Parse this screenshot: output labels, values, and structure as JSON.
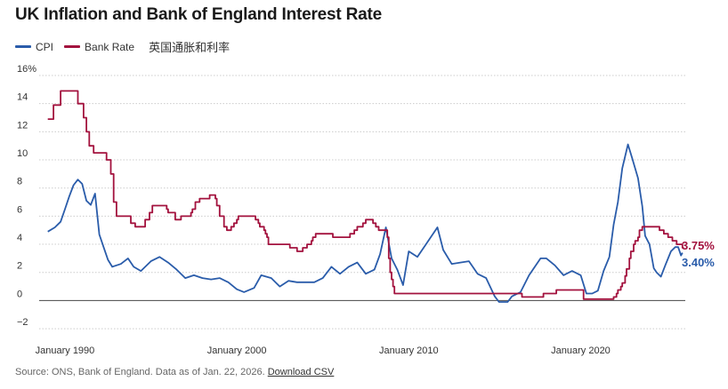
{
  "page": {
    "title": "UK Inflation and Bank of England Interest Rate",
    "legend_note": "英国通胀和利率",
    "source_text": "Source: ONS, Bank of England. Data as of Jan. 22, 2026.",
    "download_label": "Download CSV"
  },
  "colors": {
    "cpi": "#2a5caa",
    "bank_rate": "#a3123e",
    "grid": "#cccccc",
    "zero_line": "#444444"
  },
  "chart_data": {
    "type": "line",
    "title": "UK Inflation and Bank of England Interest Rate",
    "xlabel": "",
    "ylabel": "",
    "ylim": [
      -2.5,
      16
    ],
    "xlim": [
      "1988-07",
      "2026-02"
    ],
    "y_ticks": [
      -2,
      0,
      2,
      4,
      6,
      8,
      10,
      12,
      14,
      16
    ],
    "y_tick_labels": [
      "−2",
      "0",
      "2",
      "4",
      "6",
      "8",
      "10",
      "12",
      "14",
      "16%"
    ],
    "x_ticks": [
      "1990-01",
      "2000-01",
      "2010-01",
      "2020-01"
    ],
    "x_tick_labels": [
      "January 1990",
      "January 2000",
      "January 2010",
      "January 2020"
    ],
    "grid": true,
    "legend_position": "top-left",
    "series": [
      {
        "name": "CPI",
        "color": "#2a5caa",
        "step": false,
        "end_label": "3.40%",
        "points": [
          [
            "1989-01",
            4.9
          ],
          [
            "1989-06",
            5.2
          ],
          [
            "1989-10",
            5.6
          ],
          [
            "1990-01",
            6.5
          ],
          [
            "1990-04",
            7.4
          ],
          [
            "1990-07",
            8.2
          ],
          [
            "1990-10",
            8.6
          ],
          [
            "1991-01",
            8.3
          ],
          [
            "1991-04",
            7.1
          ],
          [
            "1991-07",
            6.8
          ],
          [
            "1991-10",
            7.6
          ],
          [
            "1992-01",
            4.7
          ],
          [
            "1992-04",
            3.8
          ],
          [
            "1992-07",
            2.9
          ],
          [
            "1992-10",
            2.4
          ],
          [
            "1993-04",
            2.6
          ],
          [
            "1993-09",
            3.0
          ],
          [
            "1994-01",
            2.4
          ],
          [
            "1994-06",
            2.1
          ],
          [
            "1995-01",
            2.8
          ],
          [
            "1995-07",
            3.1
          ],
          [
            "1996-01",
            2.7
          ],
          [
            "1996-07",
            2.2
          ],
          [
            "1997-01",
            1.6
          ],
          [
            "1997-07",
            1.8
          ],
          [
            "1998-01",
            1.6
          ],
          [
            "1998-07",
            1.5
          ],
          [
            "1999-01",
            1.6
          ],
          [
            "1999-07",
            1.3
          ],
          [
            "2000-01",
            0.8
          ],
          [
            "2000-06",
            0.6
          ],
          [
            "2001-01",
            0.9
          ],
          [
            "2001-06",
            1.8
          ],
          [
            "2002-01",
            1.6
          ],
          [
            "2002-07",
            1.0
          ],
          [
            "2003-01",
            1.4
          ],
          [
            "2003-07",
            1.3
          ],
          [
            "2004-01",
            1.3
          ],
          [
            "2004-07",
            1.3
          ],
          [
            "2005-01",
            1.6
          ],
          [
            "2005-07",
            2.4
          ],
          [
            "2006-01",
            1.9
          ],
          [
            "2006-07",
            2.4
          ],
          [
            "2007-01",
            2.7
          ],
          [
            "2007-07",
            1.9
          ],
          [
            "2008-01",
            2.2
          ],
          [
            "2008-05",
            3.3
          ],
          [
            "2008-09",
            5.2
          ],
          [
            "2009-01",
            3.0
          ],
          [
            "2009-05",
            2.2
          ],
          [
            "2009-09",
            1.1
          ],
          [
            "2010-01",
            3.5
          ],
          [
            "2010-07",
            3.1
          ],
          [
            "2011-01",
            4.0
          ],
          [
            "2011-09",
            5.2
          ],
          [
            "2012-01",
            3.6
          ],
          [
            "2012-07",
            2.6
          ],
          [
            "2013-01",
            2.7
          ],
          [
            "2013-07",
            2.8
          ],
          [
            "2014-01",
            1.9
          ],
          [
            "2014-07",
            1.6
          ],
          [
            "2015-01",
            0.3
          ],
          [
            "2015-04",
            -0.1
          ],
          [
            "2015-10",
            -0.1
          ],
          [
            "2016-01",
            0.3
          ],
          [
            "2016-07",
            0.6
          ],
          [
            "2017-01",
            1.8
          ],
          [
            "2017-09",
            3.0
          ],
          [
            "2018-01",
            3.0
          ],
          [
            "2018-07",
            2.5
          ],
          [
            "2019-01",
            1.8
          ],
          [
            "2019-07",
            2.1
          ],
          [
            "2020-01",
            1.8
          ],
          [
            "2020-05",
            0.5
          ],
          [
            "2020-09",
            0.5
          ],
          [
            "2021-01",
            0.7
          ],
          [
            "2021-05",
            2.1
          ],
          [
            "2021-09",
            3.1
          ],
          [
            "2021-12",
            5.4
          ],
          [
            "2022-03",
            7.0
          ],
          [
            "2022-06",
            9.4
          ],
          [
            "2022-10",
            11.1
          ],
          [
            "2023-01",
            10.1
          ],
          [
            "2023-05",
            8.7
          ],
          [
            "2023-08",
            6.7
          ],
          [
            "2023-10",
            4.6
          ],
          [
            "2024-01",
            4.0
          ],
          [
            "2024-04",
            2.3
          ],
          [
            "2024-06",
            2.0
          ],
          [
            "2024-09",
            1.7
          ],
          [
            "2024-12",
            2.5
          ],
          [
            "2025-04",
            3.5
          ],
          [
            "2025-07",
            3.8
          ],
          [
            "2025-09",
            3.8
          ],
          [
            "2025-11",
            3.2
          ],
          [
            "2025-12",
            3.4
          ]
        ]
      },
      {
        "name": "Bank Rate",
        "color": "#a3123e",
        "step": true,
        "end_label": "3.75%",
        "points": [
          [
            "1989-01",
            12.9
          ],
          [
            "1989-05",
            13.9
          ],
          [
            "1989-10",
            14.9
          ],
          [
            "1990-10",
            14.0
          ],
          [
            "1991-02",
            13.0
          ],
          [
            "1991-04",
            12.0
          ],
          [
            "1991-06",
            11.0
          ],
          [
            "1991-09",
            10.5
          ],
          [
            "1992-06",
            10.0
          ],
          [
            "1992-09",
            9.0
          ],
          [
            "1992-11",
            7.0
          ],
          [
            "1993-01",
            6.0
          ],
          [
            "1993-11",
            5.5
          ],
          [
            "1994-02",
            5.25
          ],
          [
            "1994-09",
            5.75
          ],
          [
            "1994-12",
            6.25
          ],
          [
            "1995-02",
            6.75
          ],
          [
            "1995-12",
            6.5
          ],
          [
            "1996-01",
            6.25
          ],
          [
            "1996-06",
            5.75
          ],
          [
            "1996-10",
            6.0
          ],
          [
            "1997-05",
            6.25
          ],
          [
            "1997-06",
            6.5
          ],
          [
            "1997-08",
            7.0
          ],
          [
            "1997-11",
            7.25
          ],
          [
            "1998-06",
            7.5
          ],
          [
            "1998-10",
            7.25
          ],
          [
            "1998-11",
            6.75
          ],
          [
            "1999-01",
            6.0
          ],
          [
            "1999-04",
            5.25
          ],
          [
            "1999-06",
            5.0
          ],
          [
            "1999-09",
            5.25
          ],
          [
            "1999-11",
            5.5
          ],
          [
            "2000-01",
            5.75
          ],
          [
            "2000-02",
            6.0
          ],
          [
            "2001-02",
            5.75
          ],
          [
            "2001-04",
            5.5
          ],
          [
            "2001-05",
            5.25
          ],
          [
            "2001-08",
            5.0
          ],
          [
            "2001-09",
            4.75
          ],
          [
            "2001-10",
            4.5
          ],
          [
            "2001-11",
            4.0
          ],
          [
            "2003-02",
            3.75
          ],
          [
            "2003-07",
            3.5
          ],
          [
            "2003-11",
            3.75
          ],
          [
            "2004-02",
            4.0
          ],
          [
            "2004-05",
            4.25
          ],
          [
            "2004-06",
            4.5
          ],
          [
            "2004-08",
            4.75
          ],
          [
            "2005-08",
            4.5
          ],
          [
            "2006-08",
            4.75
          ],
          [
            "2006-11",
            5.0
          ],
          [
            "2007-01",
            5.25
          ],
          [
            "2007-05",
            5.5
          ],
          [
            "2007-07",
            5.75
          ],
          [
            "2007-12",
            5.5
          ],
          [
            "2008-02",
            5.25
          ],
          [
            "2008-04",
            5.0
          ],
          [
            "2008-10",
            4.5
          ],
          [
            "2008-11",
            3.0
          ],
          [
            "2008-12",
            2.0
          ],
          [
            "2009-01",
            1.5
          ],
          [
            "2009-02",
            1.0
          ],
          [
            "2009-03",
            0.5
          ],
          [
            "2016-08",
            0.25
          ],
          [
            "2017-11",
            0.5
          ],
          [
            "2018-08",
            0.75
          ],
          [
            "2020-03",
            0.1
          ],
          [
            "2021-12",
            0.25
          ],
          [
            "2022-02",
            0.5
          ],
          [
            "2022-03",
            0.75
          ],
          [
            "2022-05",
            1.0
          ],
          [
            "2022-06",
            1.25
          ],
          [
            "2022-08",
            1.75
          ],
          [
            "2022-09",
            2.25
          ],
          [
            "2022-11",
            3.0
          ],
          [
            "2022-12",
            3.5
          ],
          [
            "2023-02",
            4.0
          ],
          [
            "2023-03",
            4.25
          ],
          [
            "2023-05",
            4.5
          ],
          [
            "2023-06",
            5.0
          ],
          [
            "2023-08",
            5.25
          ],
          [
            "2024-08",
            5.0
          ],
          [
            "2024-11",
            4.75
          ],
          [
            "2025-02",
            4.5
          ],
          [
            "2025-05",
            4.25
          ],
          [
            "2025-08",
            4.0
          ],
          [
            "2025-12",
            3.75
          ],
          [
            "2026-01",
            3.75
          ]
        ]
      }
    ]
  }
}
